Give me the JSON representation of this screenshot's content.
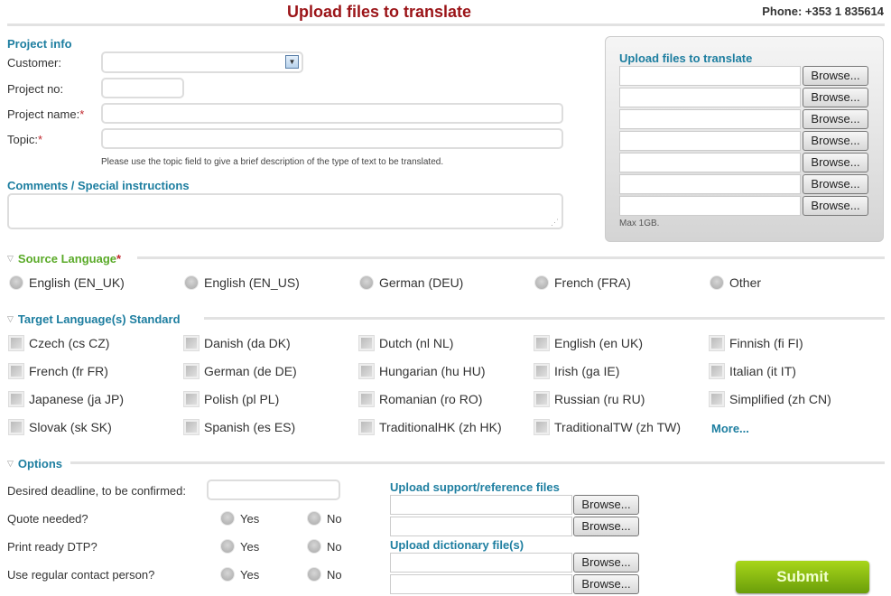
{
  "header": {
    "title": "Upload files to translate",
    "phone": "Phone: +353 1 835614"
  },
  "project_info": {
    "heading": "Project info",
    "customer_label": "Customer:",
    "customer_value": "",
    "project_no_label": "Project no:",
    "project_name_label": "Project name:",
    "topic_label": "Topic:",
    "required_mark": "*",
    "topic_hint": "Please use the topic field to give a brief description of the type of text to be translated."
  },
  "comments": {
    "heading": "Comments / Special instructions",
    "value": ""
  },
  "upload_panel": {
    "heading": "Upload files to translate",
    "browse_label": "Browse...",
    "file_count": 7,
    "note": "Max 1GB."
  },
  "source_language": {
    "heading": "Source Language",
    "required_mark": "*",
    "heading_color": "#5aaa28",
    "options": [
      "English (EN_UK)",
      "English (EN_US)",
      "German (DEU)",
      "French (FRA)",
      "Other"
    ]
  },
  "target_languages": {
    "heading": "Target Language(s) Standard",
    "options": [
      "Czech (cs CZ)",
      "Danish (da DK)",
      "Dutch (nl NL)",
      "English (en UK)",
      "Finnish (fi FI)",
      "French (fr FR)",
      "German (de DE)",
      "Hungarian (hu HU)",
      "Irish (ga IE)",
      "Italian (it IT)",
      "Japanese (ja JP)",
      "Polish (pl PL)",
      "Romanian (ro RO)",
      "Russian (ru RU)",
      "Simplified (zh CN)",
      "Slovak (sk SK)",
      "Spanish (es ES)",
      "TraditionalHK (zh HK)",
      "TraditionalTW (zh TW)"
    ],
    "more_label": "More..."
  },
  "options": {
    "heading": "Options",
    "deadline_label": "Desired deadline, to be confirmed:",
    "questions": [
      "Quote needed?",
      "Print ready DTP?",
      "Use regular contact person?"
    ],
    "yes_label": "Yes",
    "no_label": "No",
    "support_heading": "Upload support/reference files",
    "dictionary_heading": "Upload dictionary file(s)",
    "browse_label": "Browse..."
  },
  "submit_label": "Submit",
  "colors": {
    "title": "#9b1418",
    "section": "#1d7ea0",
    "submit": "#8cc414"
  }
}
